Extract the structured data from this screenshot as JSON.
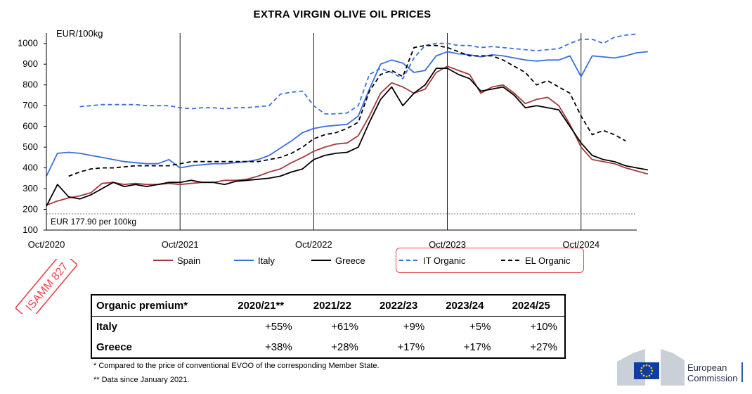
{
  "chart_data": {
    "type": "line",
    "title": "EXTRA VIRGIN OLIVE OIL PRICES",
    "ylabel": "EUR/100kg",
    "ylim": [
      100,
      1050
    ],
    "yticks": [
      100,
      200,
      300,
      400,
      500,
      600,
      700,
      800,
      900,
      1000
    ],
    "xlim": [
      "2020-10",
      "2025-03"
    ],
    "xticks": [
      "Oct/2020",
      "Oct/2021",
      "Oct/2022",
      "Oct/2023",
      "Oct/2024"
    ],
    "grid": "vertical lines at October of each year",
    "legend_position": "bottom",
    "reference_line": {
      "value": 177.9,
      "label": "EUR 177.90 per 100kg"
    },
    "series": [
      {
        "name": "Spain",
        "color": "#a33a3a",
        "dash": "solid",
        "points": [
          [
            "2020-10",
            220
          ],
          [
            "2020-11",
            240
          ],
          [
            "2020-12",
            255
          ],
          [
            "2021-01",
            265
          ],
          [
            "2021-02",
            280
          ],
          [
            "2021-03",
            325
          ],
          [
            "2021-04",
            330
          ],
          [
            "2021-05",
            320
          ],
          [
            "2021-06",
            325
          ],
          [
            "2021-07",
            320
          ],
          [
            "2021-08",
            320
          ],
          [
            "2021-09",
            325
          ],
          [
            "2021-10",
            320
          ],
          [
            "2021-11",
            325
          ],
          [
            "2021-12",
            330
          ],
          [
            "2022-01",
            330
          ],
          [
            "2022-02",
            340
          ],
          [
            "2022-03",
            340
          ],
          [
            "2022-04",
            345
          ],
          [
            "2022-05",
            360
          ],
          [
            "2022-06",
            380
          ],
          [
            "2022-07",
            395
          ],
          [
            "2022-08",
            425
          ],
          [
            "2022-09",
            450
          ],
          [
            "2022-10",
            480
          ],
          [
            "2022-11",
            500
          ],
          [
            "2022-12",
            515
          ],
          [
            "2023-01",
            520
          ],
          [
            "2023-02",
            555
          ],
          [
            "2023-03",
            650
          ],
          [
            "2023-04",
            760
          ],
          [
            "2023-05",
            810
          ],
          [
            "2023-06",
            790
          ],
          [
            "2023-07",
            760
          ],
          [
            "2023-08",
            780
          ],
          [
            "2023-09",
            860
          ],
          [
            "2023-10",
            890
          ],
          [
            "2023-11",
            870
          ],
          [
            "2023-12",
            850
          ],
          [
            "2024-01",
            760
          ],
          [
            "2024-02",
            790
          ],
          [
            "2024-03",
            800
          ],
          [
            "2024-04",
            760
          ],
          [
            "2024-05",
            710
          ],
          [
            "2024-06",
            730
          ],
          [
            "2024-07",
            740
          ],
          [
            "2024-08",
            700
          ],
          [
            "2024-09",
            610
          ],
          [
            "2024-10",
            500
          ],
          [
            "2024-11",
            440
          ],
          [
            "2024-12",
            430
          ],
          [
            "2025-01",
            420
          ],
          [
            "2025-02",
            400
          ],
          [
            "2025-03",
            385
          ],
          [
            "2025-04",
            370
          ]
        ]
      },
      {
        "name": "Italy",
        "color": "#3a6fe0",
        "dash": "solid",
        "points": [
          [
            "2020-10",
            360
          ],
          [
            "2020-11",
            470
          ],
          [
            "2020-12",
            475
          ],
          [
            "2021-01",
            470
          ],
          [
            "2021-02",
            460
          ],
          [
            "2021-03",
            450
          ],
          [
            "2021-04",
            440
          ],
          [
            "2021-05",
            430
          ],
          [
            "2021-06",
            425
          ],
          [
            "2021-07",
            420
          ],
          [
            "2021-08",
            420
          ],
          [
            "2021-09",
            440
          ],
          [
            "2021-10",
            400
          ],
          [
            "2021-11",
            410
          ],
          [
            "2021-12",
            415
          ],
          [
            "2022-01",
            420
          ],
          [
            "2022-02",
            420
          ],
          [
            "2022-03",
            425
          ],
          [
            "2022-04",
            430
          ],
          [
            "2022-05",
            440
          ],
          [
            "2022-06",
            460
          ],
          [
            "2022-07",
            495
          ],
          [
            "2022-08",
            530
          ],
          [
            "2022-09",
            570
          ],
          [
            "2022-10",
            590
          ],
          [
            "2022-11",
            600
          ],
          [
            "2022-12",
            605
          ],
          [
            "2023-01",
            610
          ],
          [
            "2023-02",
            650
          ],
          [
            "2023-03",
            780
          ],
          [
            "2023-04",
            900
          ],
          [
            "2023-05",
            920
          ],
          [
            "2023-06",
            905
          ],
          [
            "2023-07",
            860
          ],
          [
            "2023-08",
            870
          ],
          [
            "2023-09",
            940
          ],
          [
            "2023-10",
            960
          ],
          [
            "2023-11",
            950
          ],
          [
            "2023-12",
            945
          ],
          [
            "2024-01",
            935
          ],
          [
            "2024-02",
            945
          ],
          [
            "2024-03",
            940
          ],
          [
            "2024-04",
            930
          ],
          [
            "2024-05",
            920
          ],
          [
            "2024-06",
            915
          ],
          [
            "2024-07",
            920
          ],
          [
            "2024-08",
            920
          ],
          [
            "2024-09",
            940
          ],
          [
            "2024-10",
            840
          ],
          [
            "2024-11",
            940
          ],
          [
            "2024-12",
            935
          ],
          [
            "2025-01",
            930
          ],
          [
            "2025-02",
            940
          ],
          [
            "2025-03",
            955
          ],
          [
            "2025-04",
            960
          ]
        ]
      },
      {
        "name": "Greece",
        "color": "#000000",
        "dash": "solid",
        "points": [
          [
            "2020-10",
            215
          ],
          [
            "2020-11",
            320
          ],
          [
            "2020-12",
            260
          ],
          [
            "2021-01",
            250
          ],
          [
            "2021-02",
            270
          ],
          [
            "2021-03",
            300
          ],
          [
            "2021-04",
            330
          ],
          [
            "2021-05",
            310
          ],
          [
            "2021-06",
            320
          ],
          [
            "2021-07",
            310
          ],
          [
            "2021-08",
            320
          ],
          [
            "2021-09",
            330
          ],
          [
            "2021-10",
            330
          ],
          [
            "2021-11",
            340
          ],
          [
            "2021-12",
            330
          ],
          [
            "2022-01",
            330
          ],
          [
            "2022-02",
            320
          ],
          [
            "2022-03",
            335
          ],
          [
            "2022-04",
            340
          ],
          [
            "2022-05",
            345
          ],
          [
            "2022-06",
            350
          ],
          [
            "2022-07",
            360
          ],
          [
            "2022-08",
            380
          ],
          [
            "2022-09",
            395
          ],
          [
            "2022-10",
            440
          ],
          [
            "2022-11",
            460
          ],
          [
            "2022-12",
            470
          ],
          [
            "2023-01",
            475
          ],
          [
            "2023-02",
            500
          ],
          [
            "2023-03",
            620
          ],
          [
            "2023-04",
            730
          ],
          [
            "2023-05",
            790
          ],
          [
            "2023-06",
            700
          ],
          [
            "2023-07",
            760
          ],
          [
            "2023-08",
            800
          ],
          [
            "2023-09",
            880
          ],
          [
            "2023-10",
            880
          ],
          [
            "2023-11",
            850
          ],
          [
            "2023-12",
            830
          ],
          [
            "2024-01",
            770
          ],
          [
            "2024-02",
            780
          ],
          [
            "2024-03",
            790
          ],
          [
            "2024-04",
            750
          ],
          [
            "2024-05",
            690
          ],
          [
            "2024-06",
            700
          ],
          [
            "2024-07",
            690
          ],
          [
            "2024-08",
            680
          ],
          [
            "2024-09",
            600
          ],
          [
            "2024-10",
            520
          ],
          [
            "2024-11",
            460
          ],
          [
            "2024-12",
            440
          ],
          [
            "2025-01",
            430
          ],
          [
            "2025-02",
            410
          ],
          [
            "2025-03",
            400
          ],
          [
            "2025-04",
            390
          ]
        ]
      },
      {
        "name": "IT Organic",
        "color": "#3a6fe0",
        "dash": "dashed",
        "points": [
          [
            "2021-01",
            695
          ],
          [
            "2021-02",
            700
          ],
          [
            "2021-03",
            705
          ],
          [
            "2021-04",
            705
          ],
          [
            "2021-05",
            705
          ],
          [
            "2021-06",
            705
          ],
          [
            "2021-07",
            700
          ],
          [
            "2021-08",
            700
          ],
          [
            "2021-09",
            700
          ],
          [
            "2021-10",
            690
          ],
          [
            "2021-11",
            685
          ],
          [
            "2021-12",
            690
          ],
          [
            "2022-01",
            690
          ],
          [
            "2022-02",
            685
          ],
          [
            "2022-03",
            690
          ],
          [
            "2022-04",
            690
          ],
          [
            "2022-05",
            695
          ],
          [
            "2022-06",
            700
          ],
          [
            "2022-07",
            755
          ],
          [
            "2022-08",
            765
          ],
          [
            "2022-09",
            770
          ],
          [
            "2022-10",
            700
          ],
          [
            "2022-11",
            660
          ],
          [
            "2022-12",
            660
          ],
          [
            "2023-01",
            665
          ],
          [
            "2023-02",
            700
          ],
          [
            "2023-03",
            850
          ],
          [
            "2023-04",
            880
          ],
          [
            "2023-05",
            860
          ],
          [
            "2023-06",
            830
          ],
          [
            "2023-07",
            930
          ],
          [
            "2023-08",
            990
          ],
          [
            "2023-09",
            1000
          ],
          [
            "2023-10",
            1000
          ],
          [
            "2023-11",
            990
          ],
          [
            "2023-12",
            990
          ],
          [
            "2024-01",
            980
          ],
          [
            "2024-02",
            985
          ],
          [
            "2024-03",
            980
          ],
          [
            "2024-04",
            975
          ],
          [
            "2024-05",
            970
          ],
          [
            "2024-06",
            965
          ],
          [
            "2024-07",
            970
          ],
          [
            "2024-08",
            975
          ],
          [
            "2024-09",
            1000
          ],
          [
            "2024-10",
            1020
          ],
          [
            "2024-11",
            1020
          ],
          [
            "2024-12",
            1000
          ],
          [
            "2025-01",
            1030
          ],
          [
            "2025-02",
            1040
          ],
          [
            "2025-03",
            1045
          ]
        ]
      },
      {
        "name": "EL Organic",
        "color": "#000000",
        "dash": "dashed",
        "points": [
          [
            "2020-12",
            360
          ],
          [
            "2021-01",
            380
          ],
          [
            "2021-02",
            395
          ],
          [
            "2021-03",
            400
          ],
          [
            "2021-04",
            400
          ],
          [
            "2021-05",
            405
          ],
          [
            "2021-06",
            410
          ],
          [
            "2021-07",
            410
          ],
          [
            "2021-08",
            410
          ],
          [
            "2021-09",
            410
          ],
          [
            "2021-10",
            420
          ],
          [
            "2021-11",
            430
          ],
          [
            "2021-12",
            430
          ],
          [
            "2022-01",
            430
          ],
          [
            "2022-02",
            430
          ],
          [
            "2022-03",
            430
          ],
          [
            "2022-04",
            430
          ],
          [
            "2022-05",
            430
          ],
          [
            "2022-06",
            440
          ],
          [
            "2022-07",
            450
          ],
          [
            "2022-08",
            470
          ],
          [
            "2022-09",
            500
          ],
          [
            "2022-10",
            540
          ],
          [
            "2022-11",
            560
          ],
          [
            "2022-12",
            570
          ],
          [
            "2023-01",
            590
          ],
          [
            "2023-02",
            620
          ],
          [
            "2023-03",
            770
          ],
          [
            "2023-04",
            850
          ],
          [
            "2023-05",
            870
          ],
          [
            "2023-06",
            840
          ],
          [
            "2023-07",
            980
          ],
          [
            "2023-08",
            990
          ],
          [
            "2023-09",
            990
          ],
          [
            "2023-10",
            980
          ],
          [
            "2023-11",
            960
          ],
          [
            "2023-12",
            940
          ],
          [
            "2024-01",
            940
          ],
          [
            "2024-02",
            940
          ],
          [
            "2024-03",
            920
          ],
          [
            "2024-04",
            890
          ],
          [
            "2024-05",
            860
          ],
          [
            "2024-06",
            800
          ],
          [
            "2024-07",
            820
          ],
          [
            "2024-08",
            790
          ],
          [
            "2024-09",
            760
          ],
          [
            "2024-10",
            650
          ],
          [
            "2024-11",
            560
          ],
          [
            "2024-12",
            580
          ],
          [
            "2025-01",
            560
          ],
          [
            "2025-02",
            530
          ]
        ]
      }
    ]
  },
  "stamp_text": "ISAMM 827",
  "premium_table": {
    "header": [
      "Organic premium*",
      "2020/21**",
      "2021/22",
      "2022/23",
      "2023/24",
      "2024/25"
    ],
    "rows": [
      {
        "label": "Italy",
        "values": [
          "+55%",
          "+61%",
          "+9%",
          "+5%",
          "+10%"
        ]
      },
      {
        "label": "Greece",
        "values": [
          "+38%",
          "+28%",
          "+17%",
          "+17%",
          "+27%"
        ]
      }
    ]
  },
  "footnotes": {
    "note1": "*  Compared to the price of conventional EVOO of the corresponding Member State.",
    "note2": "** Data since January 2021."
  },
  "logo": {
    "line1": "European",
    "line2": "Commission",
    "flag_color": "#0d3d9e",
    "star_color": "#f7d117"
  }
}
